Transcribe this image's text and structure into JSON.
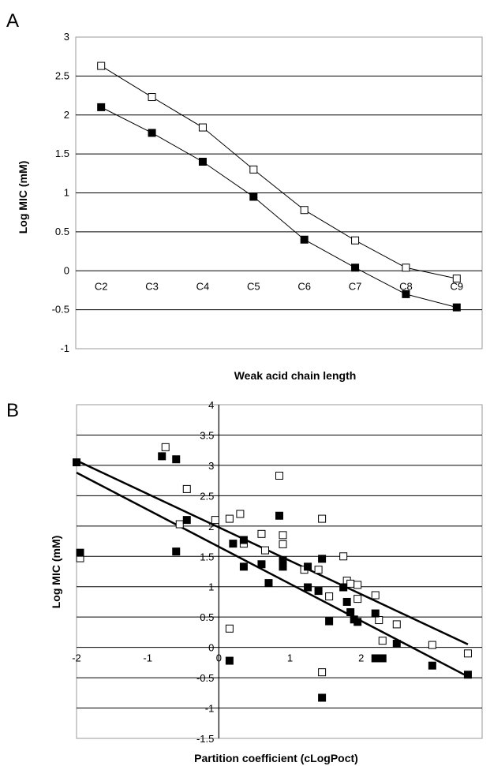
{
  "chart_data": [
    {
      "panel": "A",
      "type": "line",
      "categories": [
        "C2",
        "C3",
        "C4",
        "C5",
        "C6",
        "C7",
        "C8",
        "C9"
      ],
      "series": [
        {
          "marker": "open-square",
          "color": "#000000",
          "values": [
            2.63,
            2.23,
            1.84,
            1.3,
            0.78,
            0.39,
            0.04,
            -0.1
          ]
        },
        {
          "marker": "filled-square",
          "color": "#000000",
          "values": [
            2.1,
            1.77,
            1.4,
            0.95,
            0.4,
            0.04,
            -0.3,
            -0.47
          ]
        }
      ],
      "xlabel": "Weak acid chain length",
      "ylabel": "Log MIC (mM)",
      "ylim": [
        -1,
        3
      ],
      "yticks": [
        "-1",
        "-0.5",
        "0",
        "0.5",
        "1",
        "1.5",
        "2",
        "2.5",
        "3"
      ],
      "grid": true
    },
    {
      "panel": "B",
      "type": "scatter",
      "series": [
        {
          "marker": "open-square",
          "color": "#000000",
          "points": [
            [
              -1.95,
              1.47
            ],
            [
              -0.75,
              3.3
            ],
            [
              -0.55,
              2.03
            ],
            [
              -0.45,
              2.61
            ],
            [
              -0.05,
              2.1
            ],
            [
              0.15,
              2.12
            ],
            [
              0.15,
              0.31
            ],
            [
              0.3,
              2.2
            ],
            [
              0.35,
              1.71
            ],
            [
              0.6,
              1.87
            ],
            [
              0.65,
              1.6
            ],
            [
              0.85,
              2.83
            ],
            [
              0.9,
              1.85
            ],
            [
              0.9,
              1.7
            ],
            [
              1.2,
              1.28
            ],
            [
              1.4,
              1.28
            ],
            [
              1.45,
              2.12
            ],
            [
              1.45,
              -0.41
            ],
            [
              1.55,
              0.84
            ],
            [
              1.75,
              1.5
            ],
            [
              1.8,
              1.1
            ],
            [
              1.85,
              1.05
            ],
            [
              1.95,
              1.03
            ],
            [
              1.95,
              0.8
            ],
            [
              2.2,
              0.86
            ],
            [
              2.25,
              0.45
            ],
            [
              2.3,
              0.11
            ],
            [
              2.5,
              0.38
            ],
            [
              3.0,
              0.04
            ],
            [
              3.5,
              -0.1
            ]
          ]
        },
        {
          "marker": "filled-square",
          "color": "#000000",
          "points": [
            [
              -2.0,
              3.05
            ],
            [
              -1.95,
              1.56
            ],
            [
              -0.8,
              3.15
            ],
            [
              -0.6,
              3.1
            ],
            [
              -0.6,
              1.58
            ],
            [
              -0.45,
              2.1
            ],
            [
              0.15,
              -0.22
            ],
            [
              0.2,
              1.71
            ],
            [
              0.35,
              1.77
            ],
            [
              0.35,
              1.33
            ],
            [
              0.6,
              1.37
            ],
            [
              0.7,
              1.06
            ],
            [
              0.85,
              2.17
            ],
            [
              0.9,
              1.43
            ],
            [
              0.9,
              1.33
            ],
            [
              1.25,
              0.99
            ],
            [
              1.25,
              1.33
            ],
            [
              1.4,
              0.93
            ],
            [
              1.45,
              1.46
            ],
            [
              1.45,
              -0.83
            ],
            [
              1.55,
              0.43
            ],
            [
              1.75,
              0.99
            ],
            [
              1.8,
              0.75
            ],
            [
              1.85,
              0.58
            ],
            [
              1.9,
              0.46
            ],
            [
              1.95,
              0.42
            ],
            [
              2.2,
              0.56
            ],
            [
              2.2,
              -0.18
            ],
            [
              2.3,
              -0.18
            ],
            [
              2.5,
              0.06
            ],
            [
              3.0,
              -0.3
            ],
            [
              3.5,
              -0.45
            ]
          ]
        }
      ],
      "trendlines": [
        {
          "x": [
            -2.0,
            3.5
          ],
          "y": [
            3.08,
            0.05
          ]
        },
        {
          "x": [
            -2.0,
            3.5
          ],
          "y": [
            2.88,
            -0.48
          ]
        }
      ],
      "xlabel": "Partition coefficient (cLogPoct)",
      "ylabel": "Log MIC (mM)",
      "xlim": [
        -2,
        3.7
      ],
      "ylim": [
        -1.5,
        4
      ],
      "xticks": [
        "-2",
        "-1",
        "0",
        "1",
        "2"
      ],
      "yticks": [
        "-1.5",
        "-1",
        "-0.5",
        "0",
        "0.5",
        "1",
        "1.5",
        "2",
        "2.5",
        "3",
        "3.5",
        "4"
      ],
      "grid": true
    }
  ],
  "panels": {
    "a_letter": "A",
    "b_letter": "B"
  }
}
